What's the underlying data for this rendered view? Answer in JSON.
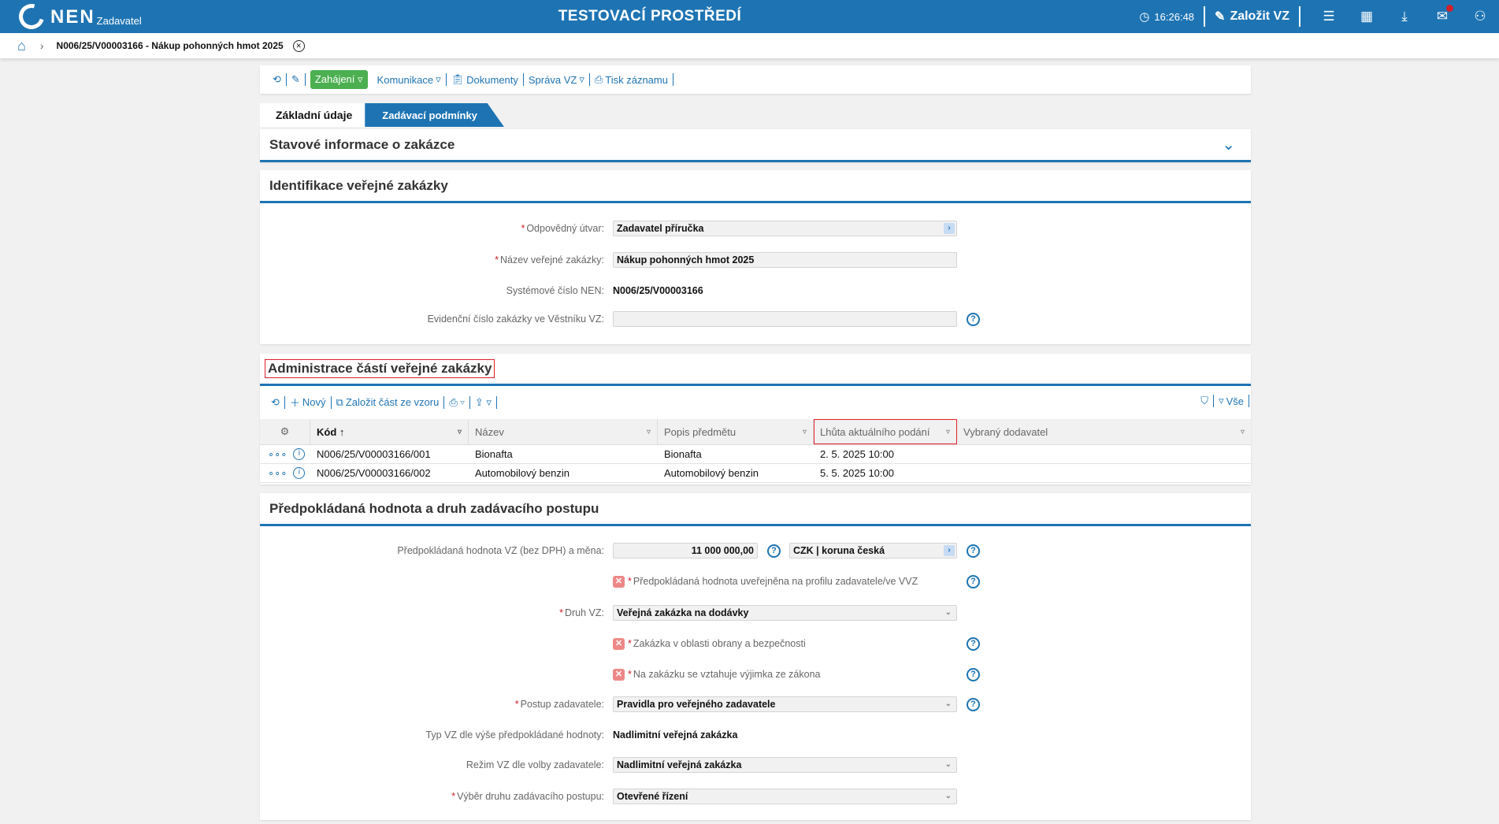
{
  "header": {
    "logo": "NEN",
    "logo_sub": "Zadavatel",
    "environment": "TESTOVACÍ PROSTŘEDÍ",
    "time": "16:26:48",
    "create_label": "Založit VZ",
    "icons": [
      "clock-icon",
      "edit-icon",
      "menu-icon",
      "calendar-icon",
      "download-icon",
      "mail-icon",
      "user-icon"
    ],
    "mail_badge_color": "#d0202a"
  },
  "breadcrumb": {
    "title": "N006/25/V00003166 - Nákup pohonných hmot 2025"
  },
  "toolbar": {
    "start": "Zahájení",
    "communication": "Komunikace",
    "documents": "Dokumenty",
    "management": "Správa VZ",
    "print": "Tisk záznamu"
  },
  "tabs": [
    {
      "label": "Základní údaje",
      "active": true
    },
    {
      "label": "Zadávací podmínky",
      "active": false
    }
  ],
  "status_section": {
    "title": "Stavové informace o zakázce"
  },
  "identification": {
    "title": "Identifikace veřejné zakázky",
    "unit_label": "Odpovědný útvar:",
    "unit_value": "Zadavatel příručka",
    "name_label": "Název veřejné zakázky:",
    "name_value": "Nákup pohonných hmot 2025",
    "sysnum_label": "Systémové číslo NEN:",
    "sysnum_value": "N006/25/V00003166",
    "evid_label": "Evidenční číslo zakázky ve Věstníku VZ:",
    "evid_value": ""
  },
  "parts": {
    "title": "Administrace částí veřejné zakázky",
    "new": "Nový",
    "from_template": "Založit část ze vzoru",
    "all": "Vše",
    "columns": [
      "Kód",
      "Název",
      "Popis předmětu",
      "Lhůta aktuálního podání",
      "Vybraný dodavatel"
    ],
    "rows": [
      {
        "code": "N006/25/V00003166/001",
        "name": "Bionafta",
        "desc": "Bionafta",
        "deadline": "2. 5. 2025 10:00",
        "supplier": ""
      },
      {
        "code": "N006/25/V00003166/002",
        "name": "Automobilový benzin",
        "desc": "Automobilový benzin",
        "deadline": "5. 5. 2025 10:00",
        "supplier": ""
      }
    ]
  },
  "value_section": {
    "title": "Předpokládaná hodnota a druh zadávacího postupu",
    "value_label": "Předpokládaná hodnota VZ (bez DPH) a měna:",
    "value": "11 000 000,00",
    "currency": "CZK | koruna česká",
    "published_label": "Předpokládaná hodnota uveřejněna na profilu zadavatele/ve VVZ",
    "published": false,
    "type_label": "Druh VZ:",
    "type_value": "Veřejná zakázka na dodávky",
    "defense_label": "Zakázka v oblasti obrany a bezpečnosti",
    "defense": false,
    "exception_label": "Na zakázku se vztahuje výjimka ze zákona",
    "exception": false,
    "procedure_label": "Postup zadavatele:",
    "procedure_value": "Pravidla pro veřejného zadavatele",
    "size_label": "Typ VZ dle výše předpokládané hodnoty:",
    "size_value": "Nadlimitní veřejná zakázka",
    "regime_label": "Režim VZ dle volby zadavatele:",
    "regime_value": "Nadlimitní veřejná zakázka",
    "method_label": "Výběr druhu zadávacího postupu:",
    "method_value": "Otevřené řízení"
  }
}
